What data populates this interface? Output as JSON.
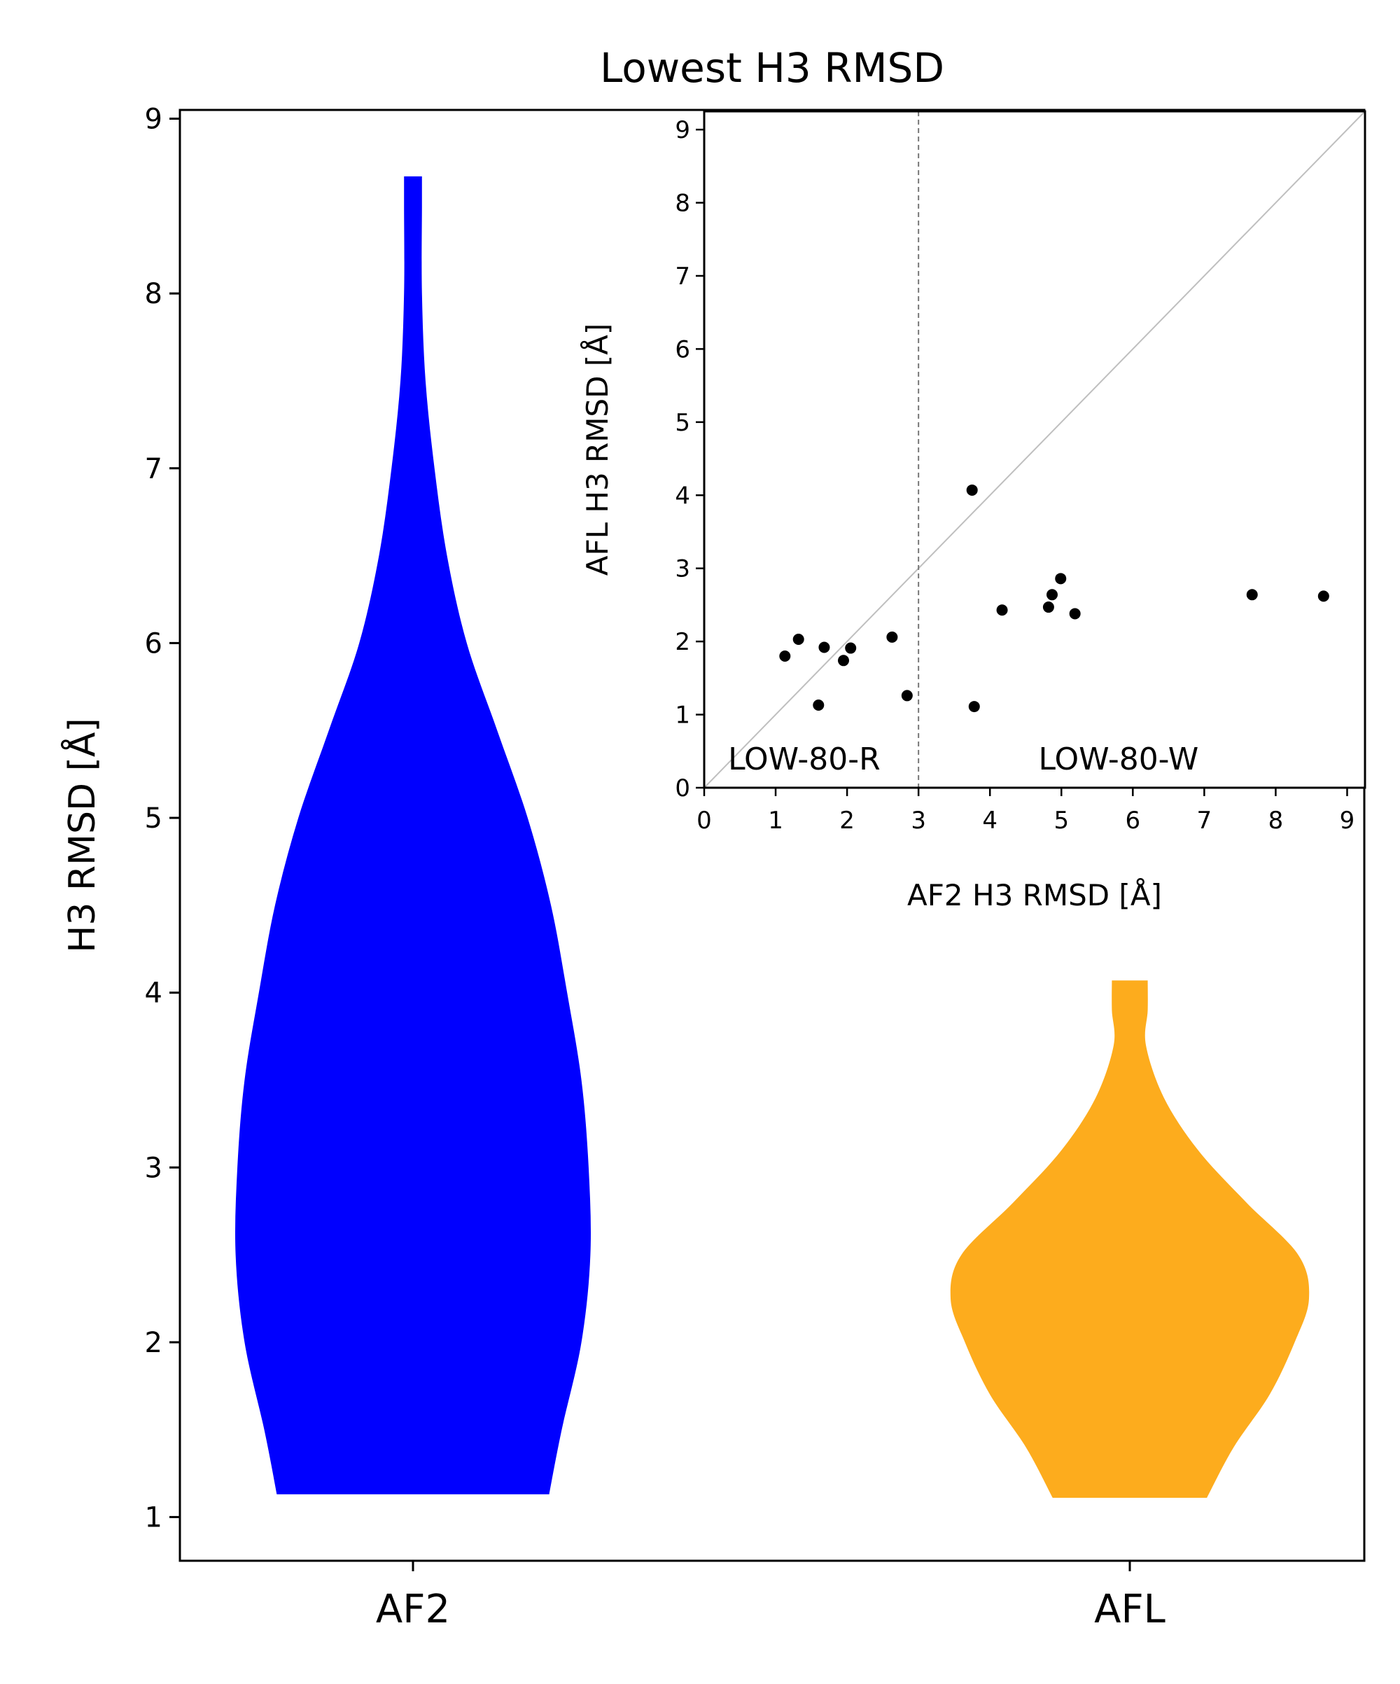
{
  "chart_data": [
    {
      "type": "violin",
      "title": "Lowest H3 RMSD",
      "xlabel": "",
      "ylabel": "H3 RMSD [Å]",
      "categories": [
        "AF2",
        "AFL"
      ],
      "ylim": [
        0.75,
        9.05
      ],
      "yticks": [
        1,
        2,
        3,
        4,
        5,
        6,
        7,
        8,
        9
      ],
      "grid": false,
      "series": [
        {
          "name": "AF2",
          "color": "#0000ff",
          "min": 1.13,
          "max": 8.67,
          "density": [
            [
              1.13,
              0.76
            ],
            [
              1.5,
              0.83
            ],
            [
              2.0,
              0.94
            ],
            [
              2.5,
              0.99
            ],
            [
              3.0,
              0.98
            ],
            [
              3.5,
              0.94
            ],
            [
              4.0,
              0.86
            ],
            [
              4.5,
              0.77
            ],
            [
              5.0,
              0.64
            ],
            [
              5.5,
              0.47
            ],
            [
              6.0,
              0.3
            ],
            [
              6.5,
              0.19
            ],
            [
              7.0,
              0.12
            ],
            [
              7.5,
              0.07
            ],
            [
              8.0,
              0.05
            ],
            [
              8.5,
              0.05
            ],
            [
              8.67,
              0.05
            ]
          ]
        },
        {
          "name": "AFL",
          "color": "#fdac1d",
          "min": 1.11,
          "max": 4.07,
          "density": [
            [
              1.11,
              0.43
            ],
            [
              1.4,
              0.58
            ],
            [
              1.7,
              0.78
            ],
            [
              2.0,
              0.92
            ],
            [
              2.25,
              1.0
            ],
            [
              2.5,
              0.94
            ],
            [
              2.8,
              0.65
            ],
            [
              3.1,
              0.38
            ],
            [
              3.4,
              0.19
            ],
            [
              3.7,
              0.09
            ],
            [
              3.9,
              0.1
            ],
            [
              4.07,
              0.1
            ]
          ]
        }
      ]
    },
    {
      "type": "scatter",
      "title": "",
      "xlabel": "AF2 H3 RMSD [Å]",
      "ylabel": "AFL H3 RMSD [Å]",
      "xlim": [
        0,
        9.25
      ],
      "ylim": [
        0,
        9.25
      ],
      "xticks": [
        0,
        1,
        2,
        3,
        4,
        5,
        6,
        7,
        8,
        9
      ],
      "yticks": [
        0,
        1,
        2,
        3,
        4,
        5,
        6,
        7,
        8,
        9
      ],
      "point_color": "#000000",
      "diagonal_color": "#bfbfbf",
      "threshold_x": 3,
      "region_labels": [
        {
          "text": "LOW-80-R",
          "x": 1.4,
          "y": 0.25
        },
        {
          "text": "LOW-80-W",
          "x": 5.8,
          "y": 0.25
        }
      ],
      "points": [
        {
          "x": 1.13,
          "y": 1.8
        },
        {
          "x": 1.32,
          "y": 2.03
        },
        {
          "x": 1.6,
          "y": 1.13
        },
        {
          "x": 1.68,
          "y": 1.92
        },
        {
          "x": 1.95,
          "y": 1.74
        },
        {
          "x": 2.05,
          "y": 1.91
        },
        {
          "x": 2.63,
          "y": 2.06
        },
        {
          "x": 2.84,
          "y": 1.26
        },
        {
          "x": 3.75,
          "y": 4.07
        },
        {
          "x": 3.78,
          "y": 1.11
        },
        {
          "x": 4.17,
          "y": 2.43
        },
        {
          "x": 4.82,
          "y": 2.47
        },
        {
          "x": 4.87,
          "y": 2.64
        },
        {
          "x": 4.99,
          "y": 2.86
        },
        {
          "x": 5.19,
          "y": 2.38
        },
        {
          "x": 7.67,
          "y": 2.64
        },
        {
          "x": 8.67,
          "y": 2.62
        }
      ]
    }
  ]
}
